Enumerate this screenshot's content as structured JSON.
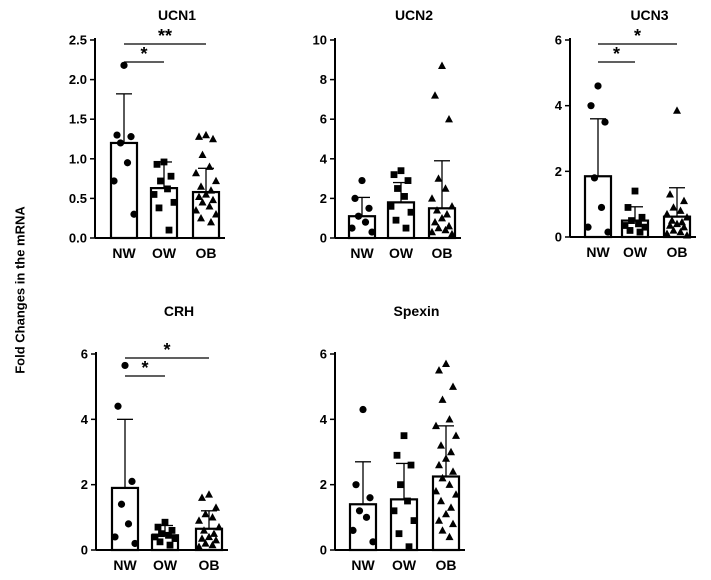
{
  "figure": {
    "ylabel": "Fold Changes in the mRNA"
  },
  "chart_data": [
    {
      "type": "bar",
      "title": "UCN1",
      "categories": [
        "NW",
        "OW",
        "OB"
      ],
      "values": [
        1.2,
        0.63,
        0.58
      ],
      "errors": [
        0.62,
        0.33,
        0.3
      ],
      "ylim": [
        0,
        2.5
      ],
      "yticks": [
        "0.0",
        "0.5",
        "1.0",
        "1.5",
        "2.0",
        "2.5"
      ],
      "markers": [
        "circle",
        "square",
        "triangle"
      ],
      "points": [
        [
          2.18,
          1.3,
          1.28,
          1.2,
          0.95,
          0.72,
          0.3
        ],
        [
          0.96,
          0.93,
          0.78,
          0.72,
          0.62,
          0.55,
          0.45,
          0.38,
          0.1
        ],
        [
          1.3,
          1.28,
          1.25,
          1.05,
          0.9,
          0.82,
          0.72,
          0.65,
          0.6,
          0.55,
          0.52,
          0.48,
          0.45,
          0.4,
          0.35,
          0.3,
          0.25,
          0.2
        ]
      ],
      "significance": [
        {
          "from": "NW",
          "to": "OW",
          "label": "*"
        },
        {
          "from": "NW",
          "to": "OB",
          "label": "**"
        }
      ]
    },
    {
      "type": "bar",
      "title": "UCN2",
      "categories": [
        "NW",
        "OW",
        "OB"
      ],
      "values": [
        1.1,
        1.8,
        1.5
      ],
      "errors": [
        0.95,
        1.0,
        2.4
      ],
      "ylim": [
        0,
        10
      ],
      "yticks": [
        "0",
        "2",
        "4",
        "6",
        "8",
        "10"
      ],
      "markers": [
        "circle",
        "square",
        "triangle"
      ],
      "points": [
        [
          2.9,
          2.0,
          1.5,
          1.1,
          0.8,
          0.5,
          0.3
        ],
        [
          3.4,
          3.2,
          2.9,
          2.5,
          2.1,
          1.6,
          1.3,
          0.9,
          0.5
        ],
        [
          8.7,
          7.2,
          6.0,
          3.0,
          2.5,
          2.0,
          1.6,
          1.4,
          1.2,
          1.0,
          0.8,
          0.6,
          0.5,
          0.4,
          0.3,
          0.2
        ]
      ],
      "significance": []
    },
    {
      "type": "bar",
      "title": "UCN3",
      "categories": [
        "NW",
        "OW",
        "OB"
      ],
      "values": [
        1.85,
        0.5,
        0.62
      ],
      "errors": [
        1.75,
        0.42,
        0.88
      ],
      "ylim": [
        0,
        6
      ],
      "yticks": [
        "0",
        "2",
        "4",
        "6"
      ],
      "markers": [
        "circle",
        "square",
        "triangle"
      ],
      "points": [
        [
          4.6,
          4.0,
          3.5,
          1.8,
          0.9,
          0.3,
          0.15
        ],
        [
          1.4,
          0.9,
          0.6,
          0.5,
          0.4,
          0.35,
          0.3,
          0.2,
          0.15
        ],
        [
          3.85,
          1.3,
          1.1,
          0.9,
          0.8,
          0.7,
          0.6,
          0.5,
          0.45,
          0.4,
          0.35,
          0.3,
          0.2,
          0.15,
          0.1,
          0.05
        ]
      ],
      "significance": [
        {
          "from": "NW",
          "to": "OW",
          "label": "*"
        },
        {
          "from": "NW",
          "to": "OB",
          "label": "*"
        }
      ]
    },
    {
      "type": "bar",
      "title": "CRH",
      "categories": [
        "NW",
        "OW",
        "OB"
      ],
      "values": [
        1.9,
        0.45,
        0.65
      ],
      "errors": [
        2.1,
        0.3,
        0.55
      ],
      "ylim": [
        0,
        6
      ],
      "yticks": [
        "0",
        "2",
        "4",
        "6"
      ],
      "markers": [
        "circle",
        "square",
        "triangle"
      ],
      "points": [
        [
          5.65,
          4.4,
          2.1,
          1.4,
          0.8,
          0.4,
          0.2
        ],
        [
          0.85,
          0.7,
          0.6,
          0.5,
          0.45,
          0.4,
          0.35,
          0.25,
          0.15
        ],
        [
          1.7,
          1.6,
          1.3,
          1.1,
          1.0,
          0.9,
          0.7,
          0.6,
          0.5,
          0.4,
          0.35,
          0.3,
          0.2,
          0.15,
          0.1
        ]
      ],
      "significance": [
        {
          "from": "NW",
          "to": "OW",
          "label": "*"
        },
        {
          "from": "NW",
          "to": "OB",
          "label": "*"
        }
      ]
    },
    {
      "type": "bar",
      "title": "Spexin",
      "categories": [
        "NW",
        "OW",
        "OB"
      ],
      "values": [
        1.4,
        1.55,
        2.25
      ],
      "errors": [
        1.3,
        1.1,
        1.55
      ],
      "ylim": [
        0,
        6
      ],
      "yticks": [
        "0",
        "2",
        "4",
        "6"
      ],
      "markers": [
        "circle",
        "square",
        "triangle"
      ],
      "points": [
        [
          4.3,
          2.0,
          1.6,
          1.2,
          1.0,
          0.6,
          0.25
        ],
        [
          3.5,
          2.9,
          2.6,
          2.0,
          1.5,
          1.2,
          0.9,
          0.5,
          0.1
        ],
        [
          5.7,
          5.5,
          5.0,
          4.6,
          4.0,
          3.8,
          3.5,
          3.2,
          3.0,
          2.8,
          2.6,
          2.4,
          2.2,
          2.0,
          1.8,
          1.7,
          1.5,
          1.3,
          1.1,
          0.9,
          0.8,
          0.6,
          0.4
        ]
      ],
      "significance": []
    }
  ]
}
